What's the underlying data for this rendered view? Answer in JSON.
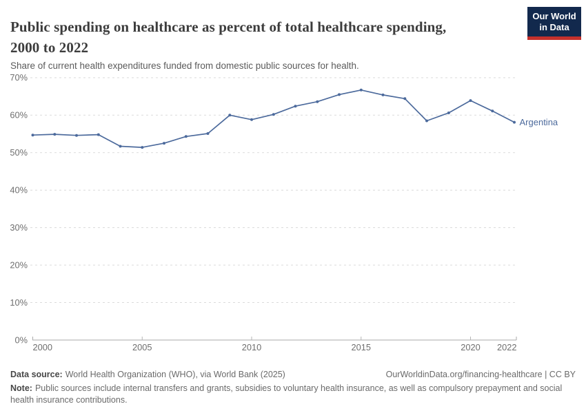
{
  "header": {
    "title": "Public spending on healthcare as percent of total healthcare spending, 2000 to 2022",
    "subtitle": "Share of current health expenditures funded from domestic public sources for health.",
    "logo": {
      "line1": "Our World",
      "line2": "in Data"
    }
  },
  "colors": {
    "series_blue": "#4c6a9c",
    "logo_navy": "#12294d",
    "logo_red": "#c5312c"
  },
  "chart_data": {
    "type": "line",
    "title": "Public spending on healthcare as percent of total healthcare spending, 2000 to 2022",
    "subtitle": "Share of current health expenditures funded from domestic public sources for health.",
    "xlabel": "",
    "ylabel": "",
    "xlim": [
      2000,
      2022
    ],
    "ylim": [
      0,
      70
    ],
    "grid": "horizontal-dashed",
    "legend_position": "end-of-line-label",
    "x": [
      2000,
      2001,
      2002,
      2003,
      2004,
      2005,
      2006,
      2007,
      2008,
      2009,
      2010,
      2011,
      2012,
      2013,
      2014,
      2015,
      2016,
      2017,
      2018,
      2019,
      2020,
      2021,
      2022
    ],
    "series": [
      {
        "name": "Argentina",
        "color": "#4c6a9c",
        "values": [
          54.7,
          54.9,
          54.6,
          54.8,
          51.7,
          51.4,
          52.5,
          54.3,
          55.1,
          60.0,
          58.8,
          60.2,
          62.4,
          63.6,
          65.5,
          66.7,
          65.4,
          64.4,
          58.5,
          60.6,
          63.9,
          61.1,
          58.1
        ]
      }
    ],
    "x_ticks": [
      2000,
      2005,
      2010,
      2015,
      2020,
      2022
    ],
    "y_ticks": [
      0,
      10,
      20,
      30,
      40,
      50,
      60,
      70
    ],
    "y_tick_suffix": "%"
  },
  "footer": {
    "datasource_label": "Data source:",
    "datasource_text": "World Health Organization (WHO), via World Bank (2025)",
    "link": "OurWorldinData.org/financing-healthcare | CC BY",
    "note_label": "Note:",
    "note_text": "Public sources include internal transfers and grants, subsidies to voluntary health insurance, as well as compulsory prepayment and social health insurance contributions."
  }
}
